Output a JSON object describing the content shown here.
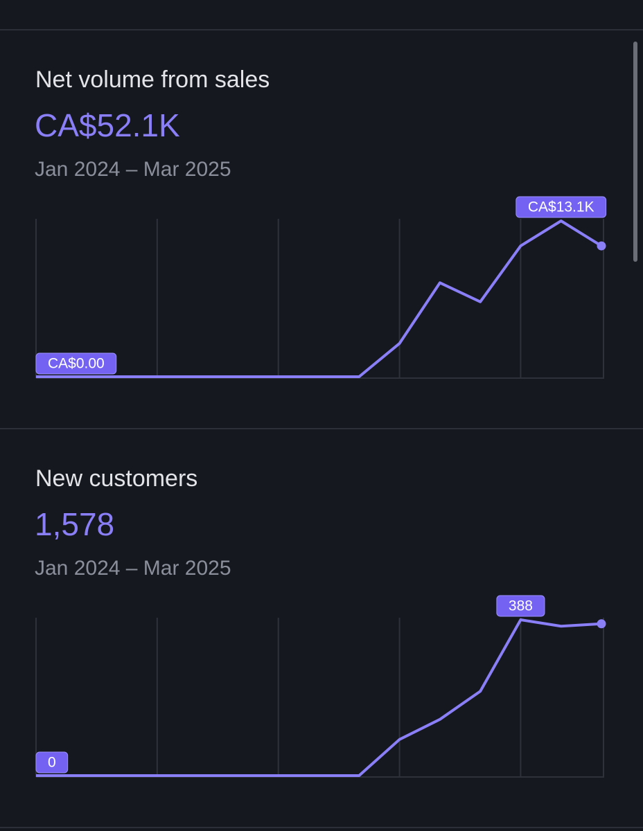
{
  "chart_data": [
    {
      "type": "line",
      "title": "Net volume from sales",
      "total": "CA$52.1K",
      "period": "Jan 2024 – Mar 2025",
      "categories": [
        null,
        null,
        null,
        null,
        null,
        null,
        null,
        null,
        null,
        null,
        null,
        null,
        null,
        null,
        null
      ],
      "values": [
        0,
        0,
        0,
        0,
        0,
        0,
        0,
        0,
        0,
        2800,
        7900,
        6300,
        11000,
        13100,
        11000
      ],
      "value_labels": [
        "CA$0.00",
        null,
        null,
        null,
        null,
        null,
        null,
        null,
        null,
        null,
        null,
        null,
        null,
        "CA$13.1K",
        null
      ],
      "color": "#8b7ff8",
      "grid": true
    },
    {
      "type": "line",
      "title": "New customers",
      "total": "1,578",
      "period": "Jan 2024 – Mar 2025",
      "categories": [
        null,
        null,
        null,
        null,
        null,
        null,
        null,
        null,
        null,
        null,
        null,
        null,
        null,
        null,
        null
      ],
      "values": [
        0,
        0,
        0,
        0,
        0,
        0,
        0,
        0,
        0,
        90,
        140,
        210,
        388,
        372,
        378
      ],
      "color": "#8b7ff8",
      "grid": true
    }
  ]
}
